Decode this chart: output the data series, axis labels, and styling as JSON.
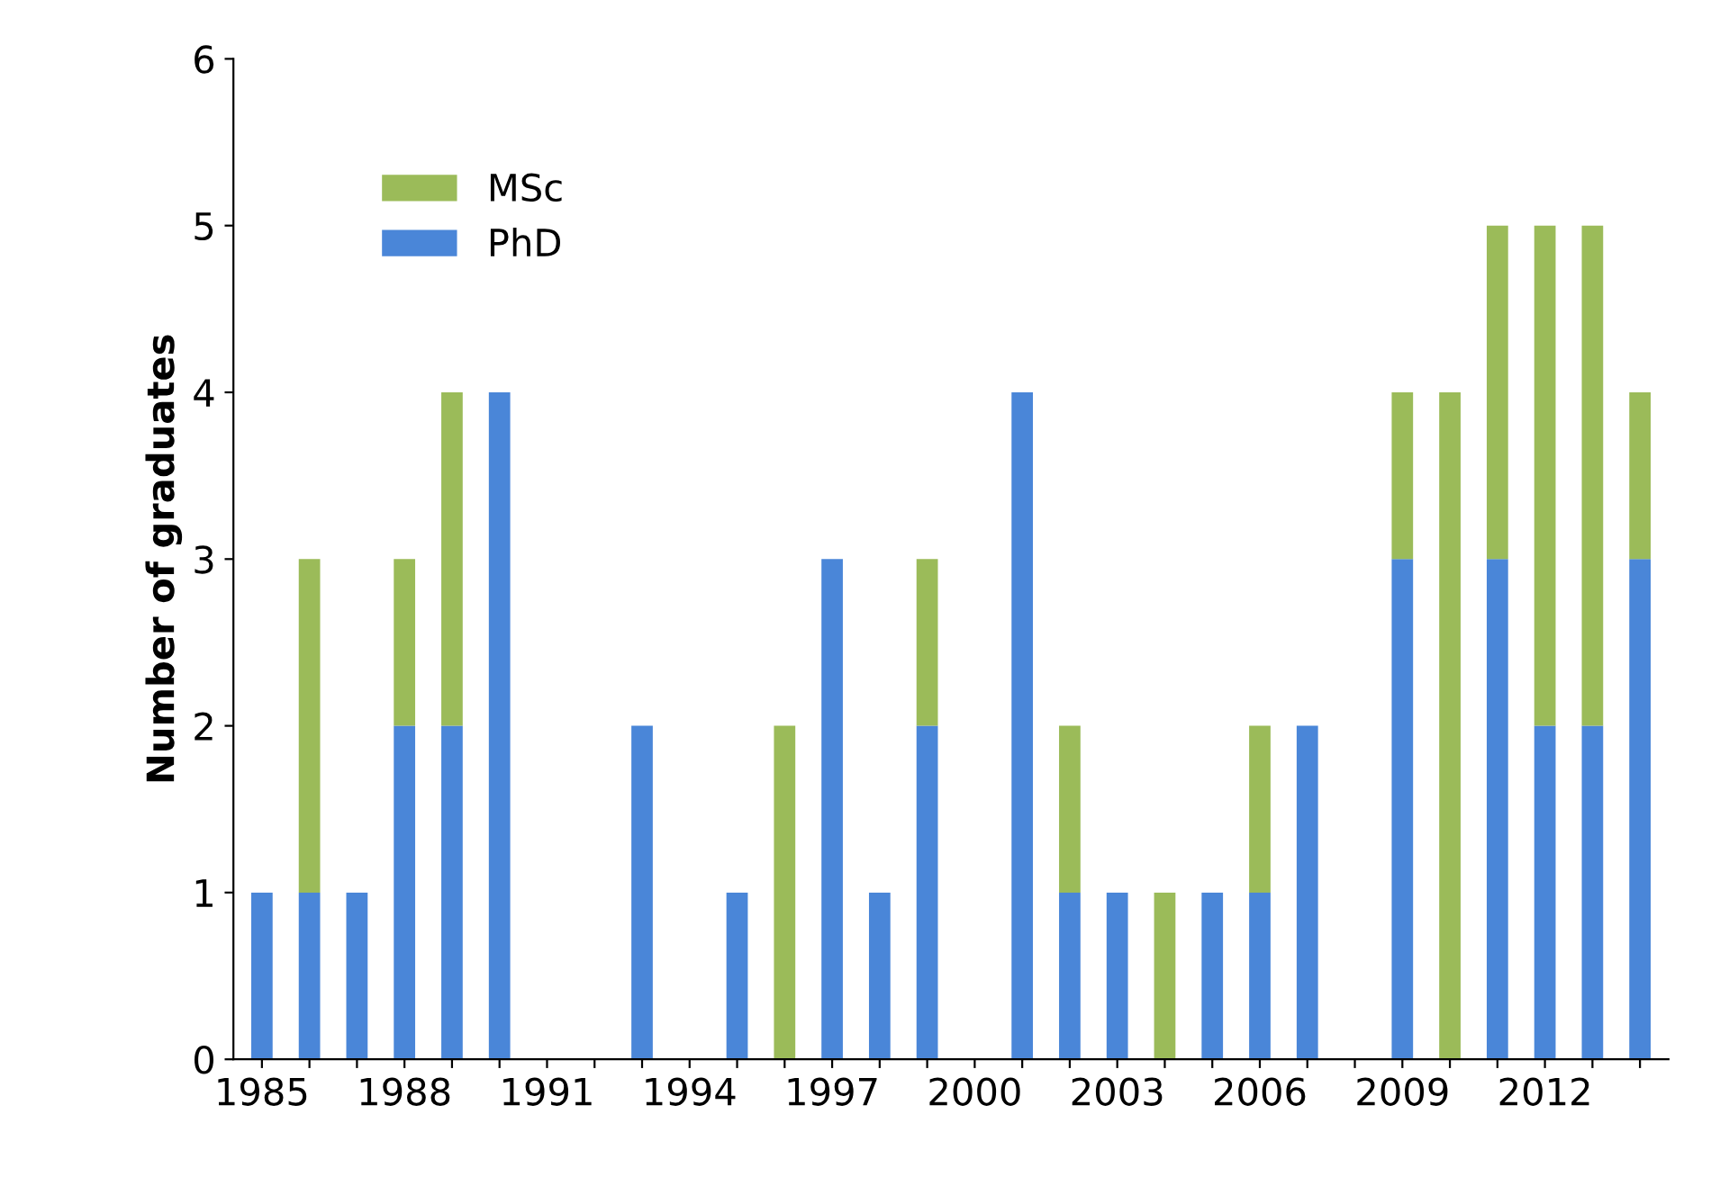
{
  "chart_data": {
    "type": "bar",
    "stacked": true,
    "ylabel": "Number of graduates",
    "categories": [
      "1985",
      null,
      null,
      "1988",
      null,
      null,
      "1991",
      null,
      null,
      "1994",
      null,
      null,
      "1997",
      null,
      null,
      "2000",
      null,
      null,
      "2003",
      null,
      null,
      "2006",
      null,
      null,
      "2009",
      null,
      null,
      "2012",
      null,
      null
    ],
    "series": [
      {
        "name": "PhD",
        "color": "#4a86d8",
        "values": [
          1,
          1,
          1,
          2,
          2,
          4,
          0,
          0,
          2,
          0,
          1,
          0,
          3,
          1,
          2,
          0,
          4,
          1,
          1,
          0,
          1,
          1,
          2,
          0,
          3,
          0,
          3,
          2,
          2,
          3
        ]
      },
      {
        "name": "MSc",
        "color": "#9bbb59",
        "values": [
          0,
          2,
          0,
          1,
          2,
          0,
          0,
          0,
          0,
          0,
          0,
          2,
          0,
          0,
          1,
          0,
          0,
          1,
          0,
          1,
          0,
          1,
          0,
          0,
          1,
          4,
          2,
          3,
          3,
          1
        ]
      }
    ],
    "ylim": [
      0,
      6
    ],
    "yticks": [
      0,
      1,
      2,
      3,
      4,
      5,
      6
    ],
    "grid": false,
    "legend": "top left"
  }
}
